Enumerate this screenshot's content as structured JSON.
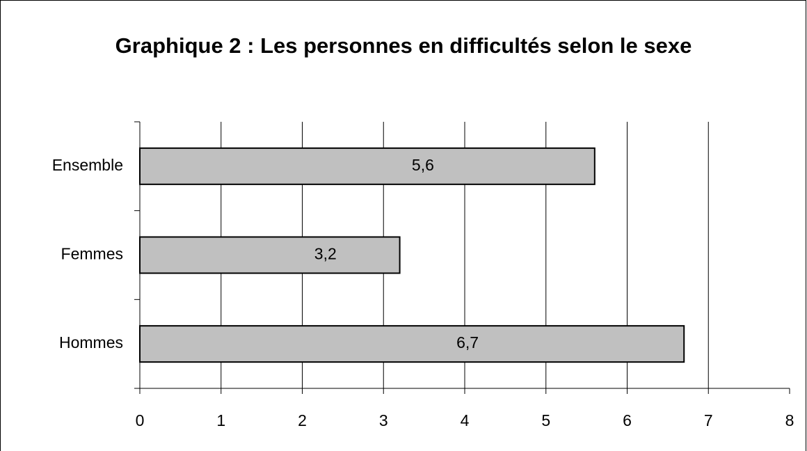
{
  "chart_data": {
    "type": "hbar",
    "title": "Graphique 2 : Les personnes en difficultés selon le sexe",
    "categories": [
      "Ensemble",
      "Femmes",
      "Hommes"
    ],
    "values": [
      5.6,
      3.2,
      6.7
    ],
    "value_labels": [
      "5,6",
      "3,2",
      "6,7"
    ],
    "color": "#c0c0c0",
    "xlim": [
      0,
      8
    ],
    "xticks": [
      0,
      1,
      2,
      3,
      4,
      5,
      6,
      7,
      8
    ],
    "grid": true
  }
}
